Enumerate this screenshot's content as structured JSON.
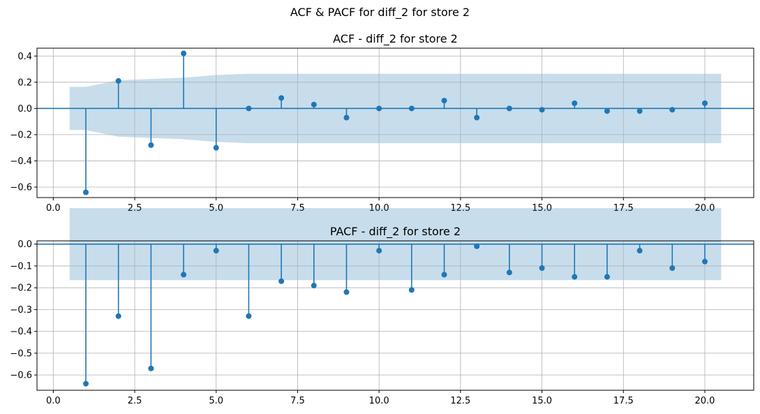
{
  "figure": {
    "suptitle": "ACF & PACF for diff_2 for store 2"
  },
  "colors": {
    "stem": "#1f77b4",
    "band": "#aec7e8",
    "grid": "#b0b0b0",
    "axis": "#000000"
  },
  "chart_data": [
    {
      "type": "stem",
      "title": "ACF - diff_2 for store 2",
      "xlabel": "",
      "ylabel": "",
      "xlim": [
        -0.5,
        21.5
      ],
      "ylim": [
        -0.68,
        0.46
      ],
      "xticks": [
        0,
        2.5,
        5,
        7.5,
        10,
        12.5,
        15,
        17.5,
        20
      ],
      "xtick_labels": [
        "0.0",
        "2.5",
        "5.0",
        "7.5",
        "10.0",
        "12.5",
        "15.0",
        "17.5",
        "20.0"
      ],
      "yticks": [
        -0.6,
        -0.4,
        -0.2,
        0,
        0.2,
        0.4
      ],
      "ytick_labels": [
        "−0.6",
        "−0.4",
        "−0.2",
        "0.0",
        "0.2",
        "0.4"
      ],
      "grid": true,
      "lags": [
        1,
        2,
        3,
        4,
        5,
        6,
        7,
        8,
        9,
        10,
        11,
        12,
        13,
        14,
        15,
        16,
        17,
        18,
        19,
        20
      ],
      "values": [
        -0.64,
        0.21,
        -0.28,
        0.42,
        -0.3,
        0.0,
        0.08,
        0.03,
        -0.07,
        0.0,
        0.0,
        0.06,
        -0.07,
        0.0,
        -0.01,
        0.04,
        -0.02,
        -0.02,
        -0.01,
        0.04
      ],
      "confidence_band": {
        "x": [
          0.5,
          1,
          2,
          3,
          4,
          5,
          6,
          7,
          8,
          9,
          10,
          11,
          12,
          13,
          14,
          15,
          16,
          17,
          18,
          19,
          20,
          20.5
        ],
        "half_width": [
          0.165,
          0.165,
          0.215,
          0.225,
          0.235,
          0.255,
          0.265,
          0.265,
          0.265,
          0.265,
          0.265,
          0.265,
          0.265,
          0.265,
          0.265,
          0.265,
          0.265,
          0.265,
          0.265,
          0.265,
          0.265,
          0.265
        ]
      }
    },
    {
      "type": "stem",
      "title": "PACF - diff_2 for store 2",
      "xlabel": "",
      "ylabel": "",
      "xlim": [
        -0.5,
        21.5
      ],
      "ylim": [
        -0.67,
        0.015
      ],
      "xticks": [
        0,
        2.5,
        5,
        7.5,
        10,
        12.5,
        15,
        17.5,
        20
      ],
      "xtick_labels": [
        "0.0",
        "2.5",
        "5.0",
        "7.5",
        "10.0",
        "12.5",
        "15.0",
        "17.5",
        "20.0"
      ],
      "yticks": [
        -0.6,
        -0.5,
        -0.4,
        -0.3,
        -0.2,
        -0.1,
        0
      ],
      "ytick_labels": [
        "−0.6",
        "−0.5",
        "−0.4",
        "−0.3",
        "−0.2",
        "−0.1",
        "0.0"
      ],
      "grid": true,
      "lags": [
        1,
        2,
        3,
        4,
        5,
        6,
        7,
        8,
        9,
        10,
        11,
        12,
        13,
        14,
        15,
        16,
        17,
        18,
        19,
        20
      ],
      "values": [
        -0.64,
        -0.33,
        -0.57,
        -0.14,
        -0.03,
        -0.33,
        -0.17,
        -0.19,
        -0.22,
        -0.03,
        -0.21,
        -0.14,
        -0.01,
        -0.13,
        -0.11,
        -0.15,
        -0.15,
        -0.03,
        -0.11,
        -0.08
      ],
      "confidence_band": {
        "x": [
          0.5,
          20.5
        ],
        "half_width": [
          0.165,
          0.165
        ]
      }
    }
  ]
}
